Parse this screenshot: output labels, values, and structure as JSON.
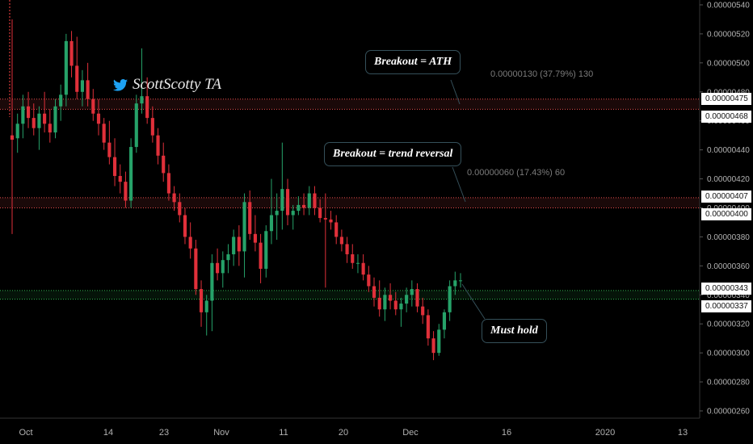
{
  "watermark": {
    "icon": "twitter-bird-icon",
    "text": "ScottScotty TA"
  },
  "callouts": {
    "top": "Breakout = ATH",
    "middle": "Breakout = trend reversal",
    "bottom": "Must hold"
  },
  "measures": {
    "top": "0.00000130 (37.79%) 130",
    "middle": "0.00000060 (17.43%) 60"
  },
  "highlighted_prices": {
    "top": [
      "0.00000475",
      "0.00000468"
    ],
    "middle": [
      "0.00000407",
      "0.00000400"
    ],
    "bottom": [
      "0.00000343",
      "0.00000337"
    ]
  },
  "colors": {
    "up": "#26a269",
    "down": "#e0303a",
    "red_zone": "#ff5555",
    "green_zone": "#34c759",
    "axis": "#b2b2b2",
    "background": "#000000"
  },
  "chart_data": {
    "type": "candlestick",
    "title": "",
    "xlabel": "",
    "ylabel": "",
    "ylim": [
      2.6e-06,
      5.4e-06
    ],
    "x_ticks": [
      "Oct",
      "14",
      "23",
      "Nov",
      "11",
      "20",
      "Dec",
      "16",
      "2020",
      "13"
    ],
    "y_ticks": [
      "0.00000540",
      "0.00000520",
      "0.00000500",
      "0.00000480",
      "0.00000460",
      "0.00000440",
      "0.00000420",
      "0.00000400",
      "0.00000380",
      "0.00000360",
      "0.00000340",
      "0.00000320",
      "0.00000300",
      "0.00000280",
      "0.00000260"
    ],
    "zones": [
      {
        "name": "top resistance",
        "low": 4.68e-06,
        "high": 4.75e-06,
        "color": "red"
      },
      {
        "name": "middle resistance",
        "low": 4e-06,
        "high": 4.07e-06,
        "color": "red"
      },
      {
        "name": "support",
        "low": 3.37e-06,
        "high": 3.43e-06,
        "color": "green"
      }
    ],
    "candles": [
      [
        4.5e-06,
        5.3e-06,
        3.82e-06,
        4.47e-06
      ],
      [
        4.48e-06,
        4.65e-06,
        4.38e-06,
        4.58e-06
      ],
      [
        4.58e-06,
        4.78e-06,
        4.48e-06,
        4.7e-06
      ],
      [
        4.7e-06,
        4.8e-06,
        4.55e-06,
        4.62e-06
      ],
      [
        4.62e-06,
        4.72e-06,
        4.5e-06,
        4.55e-06
      ],
      [
        4.55e-06,
        4.7e-06,
        4.4e-06,
        4.65e-06
      ],
      [
        4.65e-06,
        4.8e-06,
        4.52e-06,
        4.58e-06
      ],
      [
        4.58e-06,
        4.68e-06,
        4.45e-06,
        4.52e-06
      ],
      [
        4.52e-06,
        4.75e-06,
        4.48e-06,
        4.7e-06
      ],
      [
        4.7e-06,
        4.85e-06,
        4.6e-06,
        4.78e-06
      ],
      [
        4.78e-06,
        5.2e-06,
        4.7e-06,
        5.15e-06
      ],
      [
        5.15e-06,
        5.22e-06,
        4.9e-06,
        4.98e-06
      ],
      [
        4.98e-06,
        5.18e-06,
        4.75e-06,
        4.8e-06
      ],
      [
        4.8e-06,
        4.95e-06,
        4.7e-06,
        4.88e-06
      ],
      [
        4.88e-06,
        5e-06,
        4.7e-06,
        4.75e-06
      ],
      [
        4.75e-06,
        4.82e-06,
        4.6e-06,
        4.65e-06
      ],
      [
        4.65e-06,
        4.75e-06,
        4.5e-06,
        4.58e-06
      ],
      [
        4.58e-06,
        4.62e-06,
        4.4e-06,
        4.45e-06
      ],
      [
        4.45e-06,
        4.6e-06,
        4.3e-06,
        4.35e-06
      ],
      [
        4.35e-06,
        4.48e-06,
        4.15e-06,
        4.22e-06
      ],
      [
        4.22e-06,
        4.3e-06,
        4.1e-06,
        4.18e-06
      ],
      [
        4.18e-06,
        4.25e-06,
        4e-06,
        4.05e-06
      ],
      [
        4.05e-06,
        4.48e-06,
        4e-06,
        4.42e-06
      ],
      [
        4.42e-06,
        4.78e-06,
        4.38e-06,
        4.72e-06
      ],
      [
        4.72e-06,
        5.1e-06,
        4.65e-06,
        4.77e-06
      ],
      [
        4.77e-06,
        4.9e-06,
        4.58e-06,
        4.62e-06
      ],
      [
        4.62e-06,
        4.7e-06,
        4.45e-06,
        4.5e-06
      ],
      [
        4.5e-06,
        4.55e-06,
        4.3e-06,
        4.36e-06
      ],
      [
        4.36e-06,
        4.45e-06,
        4.18e-06,
        4.24e-06
      ],
      [
        4.24e-06,
        4.3e-06,
        4.05e-06,
        4.1e-06
      ],
      [
        4.1e-06,
        4.15e-06,
        3.98e-06,
        4.04e-06
      ],
      [
        4.04e-06,
        4.1e-06,
        3.9e-06,
        3.95e-06
      ],
      [
        3.95e-06,
        4e-06,
        3.75e-06,
        3.8e-06
      ],
      [
        3.8e-06,
        3.9e-06,
        3.65e-06,
        3.72e-06
      ],
      [
        3.72e-06,
        3.78e-06,
        3.4e-06,
        3.44e-06
      ],
      [
        3.44e-06,
        3.5e-06,
        3.18e-06,
        3.28e-06
      ],
      [
        3.28e-06,
        3.4e-06,
        3.12e-06,
        3.36e-06
      ],
      [
        3.36e-06,
        3.68e-06,
        3.15e-06,
        3.62e-06
      ],
      [
        3.62e-06,
        3.72e-06,
        3.5e-06,
        3.55e-06
      ],
      [
        3.55e-06,
        3.7e-06,
        3.45e-06,
        3.64e-06
      ],
      [
        3.64e-06,
        3.75e-06,
        3.55e-06,
        3.68e-06
      ],
      [
        3.68e-06,
        3.85e-06,
        3.6e-06,
        3.8e-06
      ],
      [
        3.8e-06,
        3.88e-06,
        3.6e-06,
        3.7e-06
      ],
      [
        3.7e-06,
        4.1e-06,
        3.52e-06,
        4.04e-06
      ],
      [
        4.04e-06,
        4.12e-06,
        3.78e-06,
        3.82e-06
      ],
      [
        3.82e-06,
        3.95e-06,
        3.7e-06,
        3.76e-06
      ],
      [
        3.76e-06,
        3.82e-06,
        3.48e-06,
        3.58e-06
      ],
      [
        3.58e-06,
        3.88e-06,
        3.52e-06,
        3.84e-06
      ],
      [
        3.84e-06,
        4.2e-06,
        3.75e-06,
        3.95e-06
      ],
      [
        3.95e-06,
        4.1e-06,
        3.78e-06,
        3.98e-06
      ],
      [
        3.98e-06,
        4.45e-06,
        3.85e-06,
        4.13e-06
      ],
      [
        4.13e-06,
        4.2e-06,
        3.88e-06,
        3.95e-06
      ],
      [
        3.95e-06,
        4.02e-06,
        3.85e-06,
        3.98e-06
      ],
      [
        3.98e-06,
        4.08e-06,
        3.95e-06,
        4.02e-06
      ],
      [
        4.02e-06,
        4.1e-06,
        3.95e-06,
        4e-06
      ],
      [
        4e-06,
        4.15e-06,
        3.95e-06,
        4.1e-06
      ],
      [
        4.1e-06,
        4.15e-06,
        3.95e-06,
        4e-06
      ],
      [
        4e-06,
        4.06e-06,
        3.9e-06,
        3.93e-06
      ],
      [
        3.93e-06,
        4.1e-06,
        3.45e-06,
        3.92e-06
      ],
      [
        3.92e-06,
        3.98e-06,
        3.85e-06,
        3.9e-06
      ],
      [
        3.9e-06,
        3.95e-06,
        3.75e-06,
        3.8e-06
      ],
      [
        3.8e-06,
        3.85e-06,
        3.7e-06,
        3.75e-06
      ],
      [
        3.75e-06,
        3.8e-06,
        3.62e-06,
        3.68e-06
      ],
      [
        3.68e-06,
        3.75e-06,
        3.58e-06,
        3.62e-06
      ],
      [
        3.62e-06,
        3.68e-06,
        3.55e-06,
        3.62e-06
      ],
      [
        3.62e-06,
        3.68e-06,
        3.5e-06,
        3.54e-06
      ],
      [
        3.54e-06,
        3.6e-06,
        3.42e-06,
        3.46e-06
      ],
      [
        3.46e-06,
        3.52e-06,
        3.32e-06,
        3.38e-06
      ],
      [
        3.38e-06,
        3.5e-06,
        3.25e-06,
        3.3e-06
      ],
      [
        3.3e-06,
        3.45e-06,
        3.22e-06,
        3.4e-06
      ],
      [
        3.4e-06,
        3.48e-06,
        3.3e-06,
        3.36e-06
      ],
      [
        3.36e-06,
        3.42e-06,
        3.26e-06,
        3.3e-06
      ],
      [
        3.3e-06,
        3.38e-06,
        3.18e-06,
        3.34e-06
      ],
      [
        3.34e-06,
        3.45e-06,
        3.28e-06,
        3.4e-06
      ],
      [
        3.4e-06,
        3.5e-06,
        3.32e-06,
        3.44e-06
      ],
      [
        3.44e-06,
        3.48e-06,
        3.28e-06,
        3.32e-06
      ],
      [
        3.32e-06,
        3.38e-06,
        3.2e-06,
        3.26e-06
      ],
      [
        3.26e-06,
        3.3e-06,
        3.05e-06,
        3.1e-06
      ],
      [
        3.1e-06,
        3.15e-06,
        2.95e-06,
        3e-06
      ],
      [
        3e-06,
        3.2e-06,
        2.98e-06,
        3.16e-06
      ],
      [
        3.16e-06,
        3.3e-06,
        3.1e-06,
        3.28e-06
      ],
      [
        3.28e-06,
        3.5e-06,
        3.22e-06,
        3.46e-06
      ],
      [
        3.46e-06,
        3.56e-06,
        3.4e-06,
        3.5e-06
      ],
      [
        3.5e-06,
        3.55e-06,
        3.45e-06,
        3.5e-06
      ]
    ]
  }
}
